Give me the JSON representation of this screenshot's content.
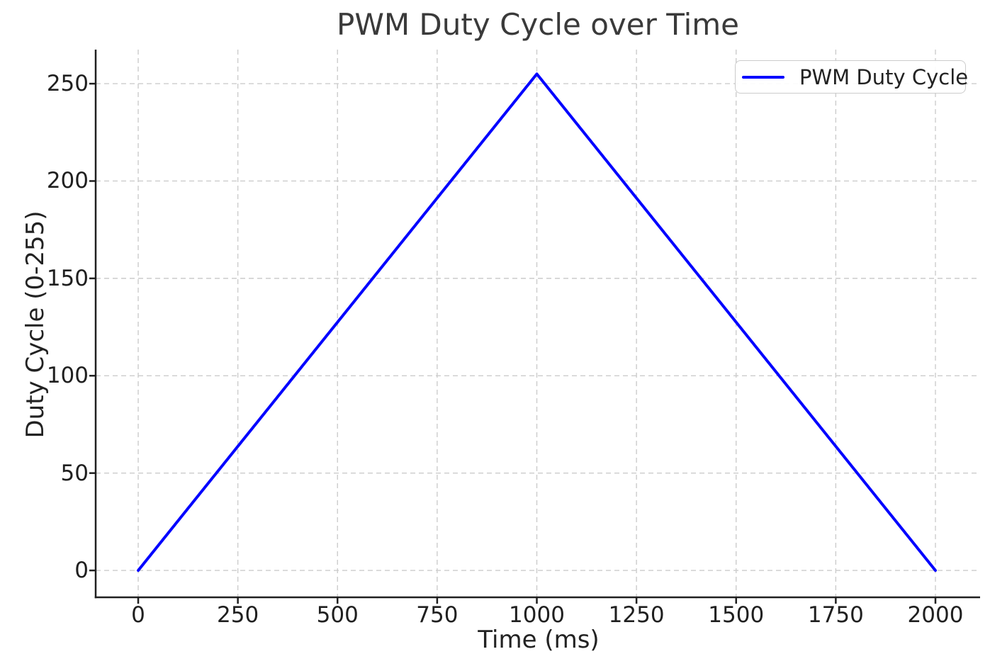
{
  "colors": {
    "line": "#0000ff",
    "grid": "#cccccc",
    "axis": "#1f1f1f",
    "tick_text": "#1f1f1f",
    "title_text": "#3a3a3a",
    "legend_border": "#cccccc",
    "background": "#ffffff"
  },
  "chart_data": {
    "type": "line",
    "title": "PWM Duty Cycle over Time",
    "xlabel": "Time (ms)",
    "ylabel": "Duty Cycle (0-255)",
    "legend_position": "upper right",
    "grid": true,
    "grid_style": "dashed",
    "x_ticks": [
      0,
      250,
      500,
      750,
      1000,
      1250,
      1500,
      1750,
      2000
    ],
    "y_ticks": [
      0,
      50,
      100,
      150,
      200,
      250
    ],
    "xlim": [
      -106.7,
      2112
    ],
    "ylim": [
      -13.8,
      267.5
    ],
    "series": [
      {
        "name": "PWM Duty Cycle",
        "color": "#0000ff",
        "points": [
          [
            0,
            0
          ],
          [
            1000,
            255
          ],
          [
            2000,
            0
          ]
        ]
      }
    ]
  }
}
